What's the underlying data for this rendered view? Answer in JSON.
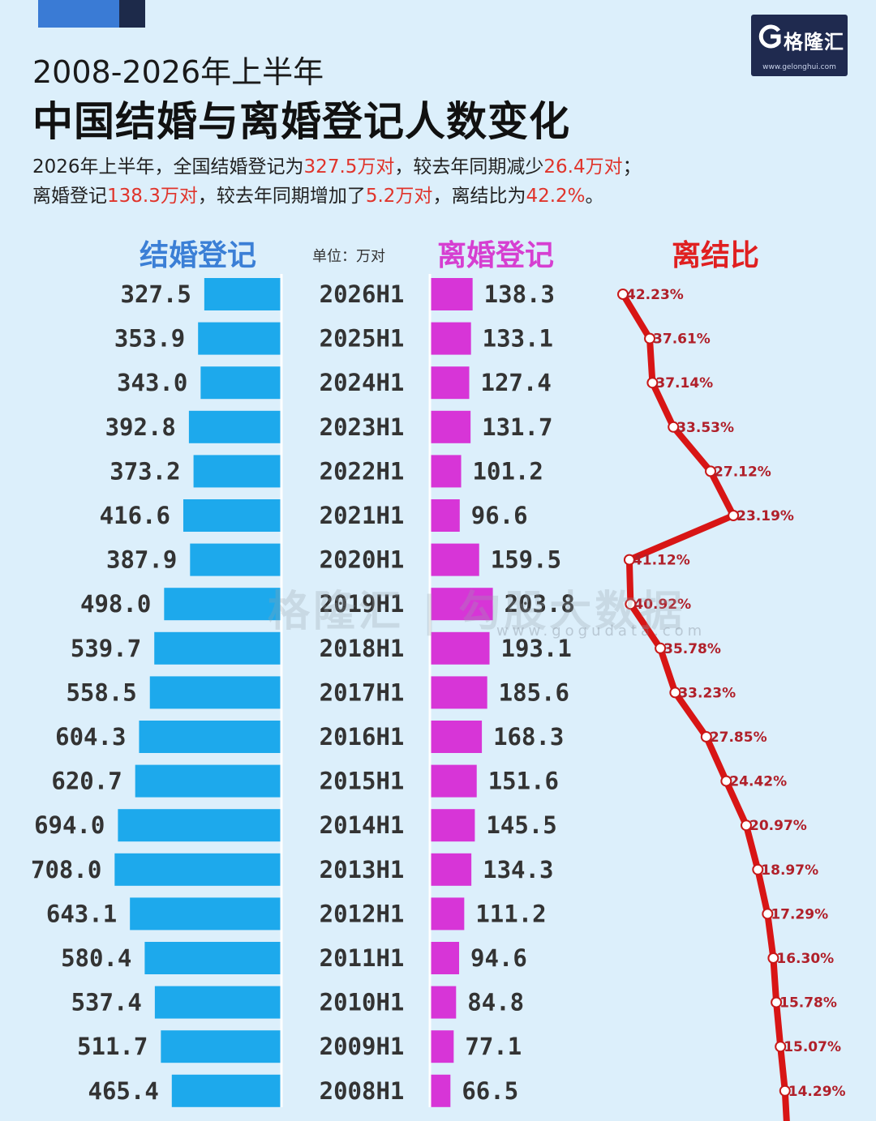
{
  "title": {
    "sup": "2008-2026年上半年",
    "main": "中国结婚与离婚登记人数变化"
  },
  "summary": {
    "line1_a": "2026年上半年，全国结婚登记为",
    "line1_v1": "327.5万对",
    "line1_b": "，较去年同期减少",
    "line1_v2": "26.4万对",
    "line1_c": "；",
    "line2_a": "离婚登记",
    "line2_v1": "138.3万对",
    "line2_b": "，较去年同期增加了",
    "line2_v2": "5.2万对",
    "line2_c": "，离结比为",
    "line2_v3": "42.2%",
    "line2_d": "。"
  },
  "headers": {
    "marriage": "结婚登记",
    "unit": "单位：万对",
    "divorce": "离婚登记",
    "ratio": "离结比"
  },
  "logo": {
    "text": "格隆汇",
    "url": "www.gelonghui.com"
  },
  "watermark": {
    "text": "格隆汇 | 勾股大数据",
    "sub": "www.gogudata.com"
  },
  "colors": {
    "marriage": "#1da9ec",
    "divorce": "#d735d7",
    "ratio": "#d81515",
    "accent": "#e0342b"
  },
  "chart_data": {
    "type": "bar",
    "unit": "万对",
    "categories": [
      "2026H1",
      "2025H1",
      "2024H1",
      "2023H1",
      "2022H1",
      "2021H1",
      "2020H1",
      "2019H1",
      "2018H1",
      "2017H1",
      "2016H1",
      "2015H1",
      "2014H1",
      "2013H1",
      "2012H1",
      "2011H1",
      "2010H1",
      "2009H1",
      "2008H1"
    ],
    "series": [
      {
        "name": "结婚登记",
        "values": [
          327.5,
          353.9,
          343.0,
          392.8,
          373.2,
          416.6,
          387.9,
          498.0,
          539.7,
          558.5,
          604.3,
          620.7,
          694.0,
          708.0,
          643.1,
          580.4,
          537.4,
          511.7,
          465.4
        ]
      },
      {
        "name": "离婚登记",
        "values": [
          138.3,
          133.1,
          127.4,
          131.7,
          101.2,
          96.6,
          159.5,
          203.8,
          193.1,
          185.6,
          168.3,
          151.6,
          145.5,
          134.3,
          111.2,
          94.6,
          84.8,
          77.1,
          66.5
        ]
      },
      {
        "name": "离结比",
        "type": "line",
        "values": [
          42.23,
          37.61,
          37.14,
          33.53,
          27.12,
          23.19,
          41.12,
          40.92,
          35.78,
          33.23,
          27.85,
          24.42,
          20.97,
          18.97,
          17.29,
          16.3,
          15.78,
          15.07,
          14.29
        ]
      }
    ],
    "value_labels": {
      "marriage": [
        "327.5",
        "353.9",
        "343.0",
        "392.8",
        "373.2",
        "416.6",
        "387.9",
        "498.0",
        "539.7",
        "558.5",
        "604.3",
        "620.7",
        "694.0",
        "708.0",
        "643.1",
        "580.4",
        "537.4",
        "511.7",
        "465.4"
      ],
      "divorce": [
        "138.3",
        "133.1",
        "127.4",
        "131.7",
        "101.2",
        "96.6",
        "159.5",
        "203.8",
        "193.1",
        "185.6",
        "168.3",
        "151.6",
        "145.5",
        "134.3",
        "111.2",
        "94.6",
        "84.8",
        "77.1",
        "66.5"
      ],
      "ratio": [
        "42.23%",
        "37.61%",
        "37.14%",
        "33.53%",
        "27.12%",
        "23.19%",
        "41.12%",
        "40.92%",
        "35.78%",
        "33.23%",
        "27.85%",
        "24.42%",
        "20.97%",
        "18.97%",
        "17.29%",
        "16.30%",
        "15.78%",
        "15.07%",
        "14.29%"
      ]
    }
  }
}
